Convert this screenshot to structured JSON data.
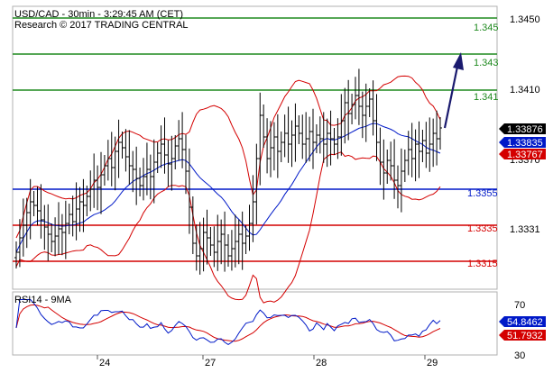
{
  "header": {
    "line1": "USD/CAD - 30min - 3:29:45 AM (CET)",
    "line2": "Research © 2017 TRADING CENTRAL"
  },
  "colors": {
    "resistance": "#1f8a1f",
    "support": "#d40000",
    "pivot": "#0019c8",
    "bollinger": "#d40000",
    "moving_average": "#0019c8",
    "price": "#000000",
    "arrow": "#1a1a6e",
    "badge_last": "#000000",
    "badge_bid": "#0019c8",
    "badge_low": "#d40000"
  },
  "chart_data": [
    {
      "type": "line",
      "subtype": "ohlc-with-bollinger",
      "title": "USD/CAD - 30min - 3:29:45 AM (CET)",
      "ylim": [
        1.3283,
        1.3462
      ],
      "y_ticks": [
        "1.3450",
        "1.3410",
        "1.3370",
        "1.3331"
      ],
      "x_ticks": [
        "24",
        "27",
        "28",
        "29"
      ],
      "levels": [
        {
          "label": "1.345",
          "value": 1.345,
          "kind": "resistance"
        },
        {
          "label": "1.343",
          "value": 1.343,
          "kind": "resistance"
        },
        {
          "label": "1.341",
          "value": 1.341,
          "kind": "resistance"
        },
        {
          "label": "1.3355",
          "value": 1.3355,
          "kind": "pivot"
        },
        {
          "label": "1.3335",
          "value": 1.3335,
          "kind": "support"
        },
        {
          "label": "1.3315",
          "value": 1.3315,
          "kind": "support"
        }
      ],
      "price_badges": [
        {
          "label": "1.33876",
          "kind": "last"
        },
        {
          "label": "1.33835",
          "kind": "bid"
        },
        {
          "label": "1.33767",
          "kind": "low"
        }
      ],
      "close": [
        1.332,
        1.3328,
        1.3335,
        1.3342,
        1.3348,
        1.3346,
        1.3343,
        1.3338,
        1.3334,
        1.333,
        1.3326,
        1.3329,
        1.3333,
        1.3331,
        1.3336,
        1.3341,
        1.3337,
        1.3344,
        1.3348,
        1.3346,
        1.3351,
        1.3355,
        1.336,
        1.3356,
        1.3363,
        1.3368,
        1.3372,
        1.3367,
        1.3376,
        1.3381,
        1.3378,
        1.3373,
        1.3368,
        1.3366,
        1.3361,
        1.3357,
        1.3362,
        1.3366,
        1.3362,
        1.337,
        1.3375,
        1.338,
        1.3374,
        1.3369,
        1.3372,
        1.3379,
        1.3383,
        1.3377,
        1.3365,
        1.3345,
        1.3325,
        1.3318,
        1.3322,
        1.3331,
        1.3328,
        1.3324,
        1.332,
        1.3326,
        1.333,
        1.3324,
        1.3318,
        1.3322,
        1.3326,
        1.333,
        1.3325,
        1.3329,
        1.3336,
        1.3348,
        1.3372,
        1.3396,
        1.3384,
        1.3372,
        1.3378,
        1.3384,
        1.3376,
        1.3381,
        1.3386,
        1.338,
        1.3385,
        1.339,
        1.3386,
        1.338,
        1.3383,
        1.3387,
        1.3381,
        1.3385,
        1.3383,
        1.338,
        1.3386,
        1.3383,
        1.338,
        1.3384,
        1.3393,
        1.3403,
        1.3397,
        1.3402,
        1.3407,
        1.3401,
        1.3396,
        1.3401,
        1.3405,
        1.3393,
        1.3381,
        1.337,
        1.3364,
        1.3371,
        1.3368,
        1.336,
        1.3357,
        1.3365,
        1.3371,
        1.3377,
        1.3372,
        1.338,
        1.3376,
        1.3382,
        1.3375,
        1.338,
        1.3386,
        1.3383,
        1.3389
      ],
      "rsi": {
        "label": "RSI14 - 9MA",
        "values": [
          "54.8462",
          "51.7932"
        ],
        "ylim": [
          30,
          70
        ],
        "y_ticks": [
          "70",
          "30"
        ]
      }
    }
  ]
}
